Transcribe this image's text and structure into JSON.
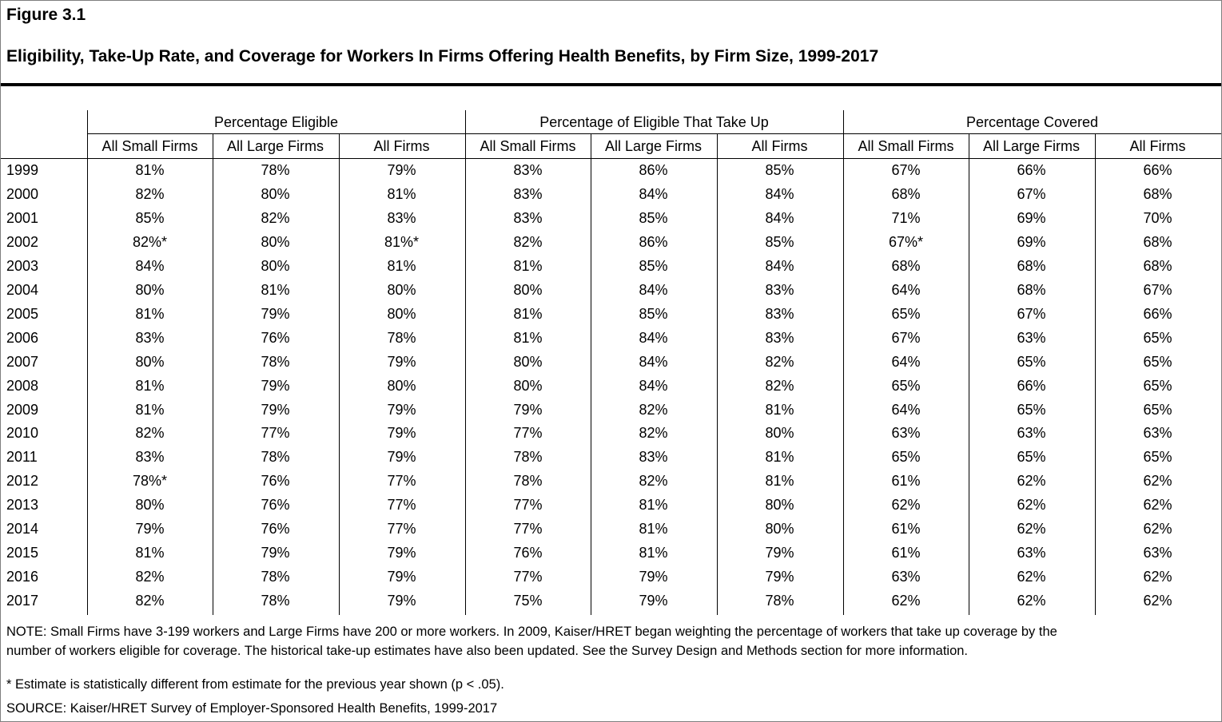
{
  "figure_label": "Figure 3.1",
  "title": "Eligibility, Take-Up Rate, and Coverage for Workers In Firms Offering Health Benefits, by Firm Size, 1999-2017",
  "groups": [
    "Percentage Eligible",
    "Percentage of Eligible That Take Up",
    "Percentage Covered"
  ],
  "columns": [
    "All Small Firms",
    "All Large Firms",
    "All Firms",
    "All Small Firms",
    "All Large Firms",
    "All Firms",
    "All Small Firms",
    "All Large Firms",
    "All Firms"
  ],
  "rows": [
    {
      "year": "1999",
      "cells": [
        "81%",
        "78%",
        "79%",
        "83%",
        "86%",
        "85%",
        "67%",
        "66%",
        "66%"
      ]
    },
    {
      "year": "2000",
      "cells": [
        "82%",
        "80%",
        "81%",
        "83%",
        "84%",
        "84%",
        "68%",
        "67%",
        "68%"
      ]
    },
    {
      "year": "2001",
      "cells": [
        "85%",
        "82%",
        "83%",
        "83%",
        "85%",
        "84%",
        "71%",
        "69%",
        "70%"
      ]
    },
    {
      "year": "2002",
      "cells": [
        "82%*",
        "80%",
        "81%*",
        "82%",
        "86%",
        "85%",
        "67%*",
        "69%",
        "68%"
      ]
    },
    {
      "year": "2003",
      "cells": [
        "84%",
        "80%",
        "81%",
        "81%",
        "85%",
        "84%",
        "68%",
        "68%",
        "68%"
      ]
    },
    {
      "year": "2004",
      "cells": [
        "80%",
        "81%",
        "80%",
        "80%",
        "84%",
        "83%",
        "64%",
        "68%",
        "67%"
      ]
    },
    {
      "year": "2005",
      "cells": [
        "81%",
        "79%",
        "80%",
        "81%",
        "85%",
        "83%",
        "65%",
        "67%",
        "66%"
      ]
    },
    {
      "year": "2006",
      "cells": [
        "83%",
        "76%",
        "78%",
        "81%",
        "84%",
        "83%",
        "67%",
        "63%",
        "65%"
      ]
    },
    {
      "year": "2007",
      "cells": [
        "80%",
        "78%",
        "79%",
        "80%",
        "84%",
        "82%",
        "64%",
        "65%",
        "65%"
      ]
    },
    {
      "year": "2008",
      "cells": [
        "81%",
        "79%",
        "80%",
        "80%",
        "84%",
        "82%",
        "65%",
        "66%",
        "65%"
      ]
    },
    {
      "year": "2009",
      "cells": [
        "81%",
        "79%",
        "79%",
        "79%",
        "82%",
        "81%",
        "64%",
        "65%",
        "65%"
      ]
    },
    {
      "year": "2010",
      "cells": [
        "82%",
        "77%",
        "79%",
        "77%",
        "82%",
        "80%",
        "63%",
        "63%",
        "63%"
      ]
    },
    {
      "year": "2011",
      "cells": [
        "83%",
        "78%",
        "79%",
        "78%",
        "83%",
        "81%",
        "65%",
        "65%",
        "65%"
      ]
    },
    {
      "year": "2012",
      "cells": [
        "78%*",
        "76%",
        "77%",
        "78%",
        "82%",
        "81%",
        "61%",
        "62%",
        "62%"
      ]
    },
    {
      "year": "2013",
      "cells": [
        "80%",
        "76%",
        "77%",
        "77%",
        "81%",
        "80%",
        "62%",
        "62%",
        "62%"
      ]
    },
    {
      "year": "2014",
      "cells": [
        "79%",
        "76%",
        "77%",
        "77%",
        "81%",
        "80%",
        "61%",
        "62%",
        "62%"
      ]
    },
    {
      "year": "2015",
      "cells": [
        "81%",
        "79%",
        "79%",
        "76%",
        "81%",
        "79%",
        "61%",
        "63%",
        "63%"
      ]
    },
    {
      "year": "2016",
      "cells": [
        "82%",
        "78%",
        "79%",
        "77%",
        "79%",
        "79%",
        "63%",
        "62%",
        "62%"
      ]
    },
    {
      "year": "2017",
      "cells": [
        "82%",
        "78%",
        "79%",
        "75%",
        "79%",
        "78%",
        "62%",
        "62%",
        "62%"
      ]
    }
  ],
  "notes": {
    "note_line1": "NOTE: Small Firms have 3-199 workers and Large Firms have 200 or more workers. In 2009, Kaiser/HRET began weighting the percentage of workers that take up coverage by the",
    "note_line2": "number of workers eligible for coverage. The historical take-up estimates have also been updated. See the Survey Design and Methods section for more information.",
    "asterisk": " * Estimate is statistically different from estimate for the previous year shown (p < .05).",
    "source": "SOURCE: Kaiser/HRET Survey of Employer-Sponsored Health Benefits, 1999-2017"
  }
}
